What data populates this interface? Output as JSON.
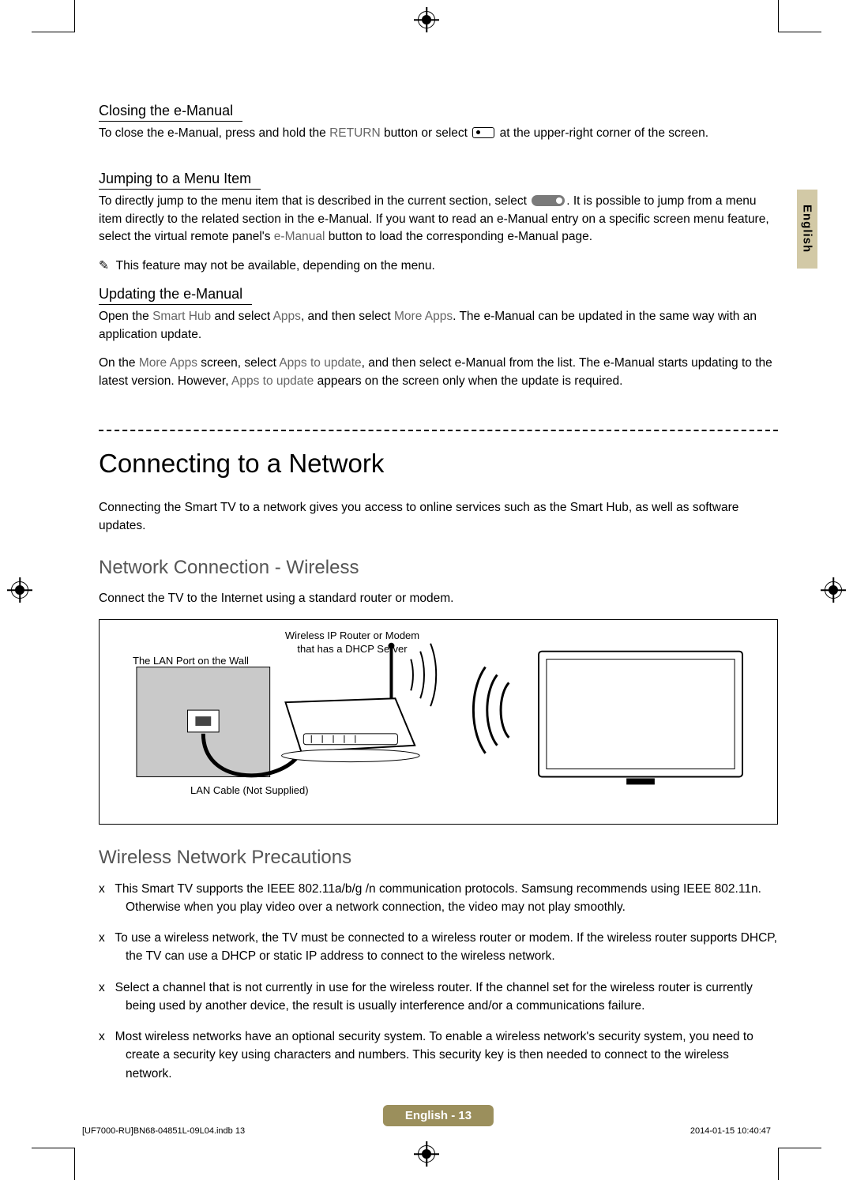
{
  "lang_tab": "English",
  "colors": {
    "tab_bg": "#d2c9a6",
    "pagenum_bg": "#9b8f5c",
    "pagenum_fg": "#ffffff",
    "subtitle_color": "#555555",
    "light_text": "#666666"
  },
  "s1": {
    "heading": "Closing the e-Manual",
    "p_before": "To close the e-Manual, press and hold the ",
    "term": "RETURN",
    "p_after": " button or select  ",
    "p_end": " at the upper-right corner of the screen."
  },
  "s2": {
    "heading": "Jumping to a Menu Item",
    "p1_a": "To directly jump to the menu item that is described in the current section, select ",
    "p1_b": ". It is possible to jump from a menu item directly to the related section in the e-Manual. If you want to read an e-Manual entry on a specific screen menu feature, select the virtual remote panel's ",
    "p1_term": "e-Manual",
    "p1_c": " button to load the corresponding e-Manual page.",
    "note_marker": "✎",
    "note": "This feature may not be available, depending on the menu."
  },
  "s3": {
    "heading": "Updating the e-Manual",
    "p1_a": "Open the ",
    "p1_t1": "Smart Hub",
    "p1_b": " and select ",
    "p1_t2": "Apps",
    "p1_c": ", and then select ",
    "p1_t3": "More Apps",
    "p1_d": ". The e-Manual can be updated in the same way with an application update.",
    "p2_a": "On the ",
    "p2_t1": "More Apps",
    "p2_b": " screen, select ",
    "p2_t2": "Apps to update",
    "p2_c": ", and then select e-Manual from the list. The e-Manual starts updating to the latest version. However, ",
    "p2_t3": "Apps to update",
    "p2_d": " appears on the screen only when the update is required."
  },
  "main": {
    "title": "Connecting to a Network",
    "intro": "Connecting the Smart TV to a network gives you access to online services such as the Smart Hub, as well as software updates.",
    "sub1": "Network Connection - Wireless",
    "sub1_p": "Connect the TV to the Internet using a standard router or modem.",
    "diagram": {
      "label_router": "Wireless IP Router or Modem\nthat has a DHCP Server",
      "label_lanport": "The LAN Port on the Wall",
      "label_cable": "LAN Cable (Not Supplied)"
    },
    "sub2": "Wireless Network Precautions",
    "bullets": [
      "This Smart TV supports the IEEE 802.11a/b/g /n communication protocols. Samsung recommends using IEEE 802.11n. Otherwise when you play video over a network connection, the video may not play smoothly.",
      "To use a wireless network, the TV must be connected to a wireless router or modem. If the wireless router supports DHCP, the TV can use a DHCP or static IP address to connect to the wireless network.",
      "Select a channel that is not currently in use for the wireless router. If the channel set for the wireless router is currently being used by another device, the result is usually interference and/or a communications failure.",
      "Most wireless networks have an optional security system. To enable a wireless network's security system, you need to create a security key using characters and numbers. This security key is then needed to connect to the wireless network."
    ],
    "bullet_marker": "x"
  },
  "page_number": "English - 13",
  "footer": {
    "left": "[UF7000-RU]BN68-04851L-09L04.indb   13",
    "right": "2014-01-15   10:40:47"
  }
}
